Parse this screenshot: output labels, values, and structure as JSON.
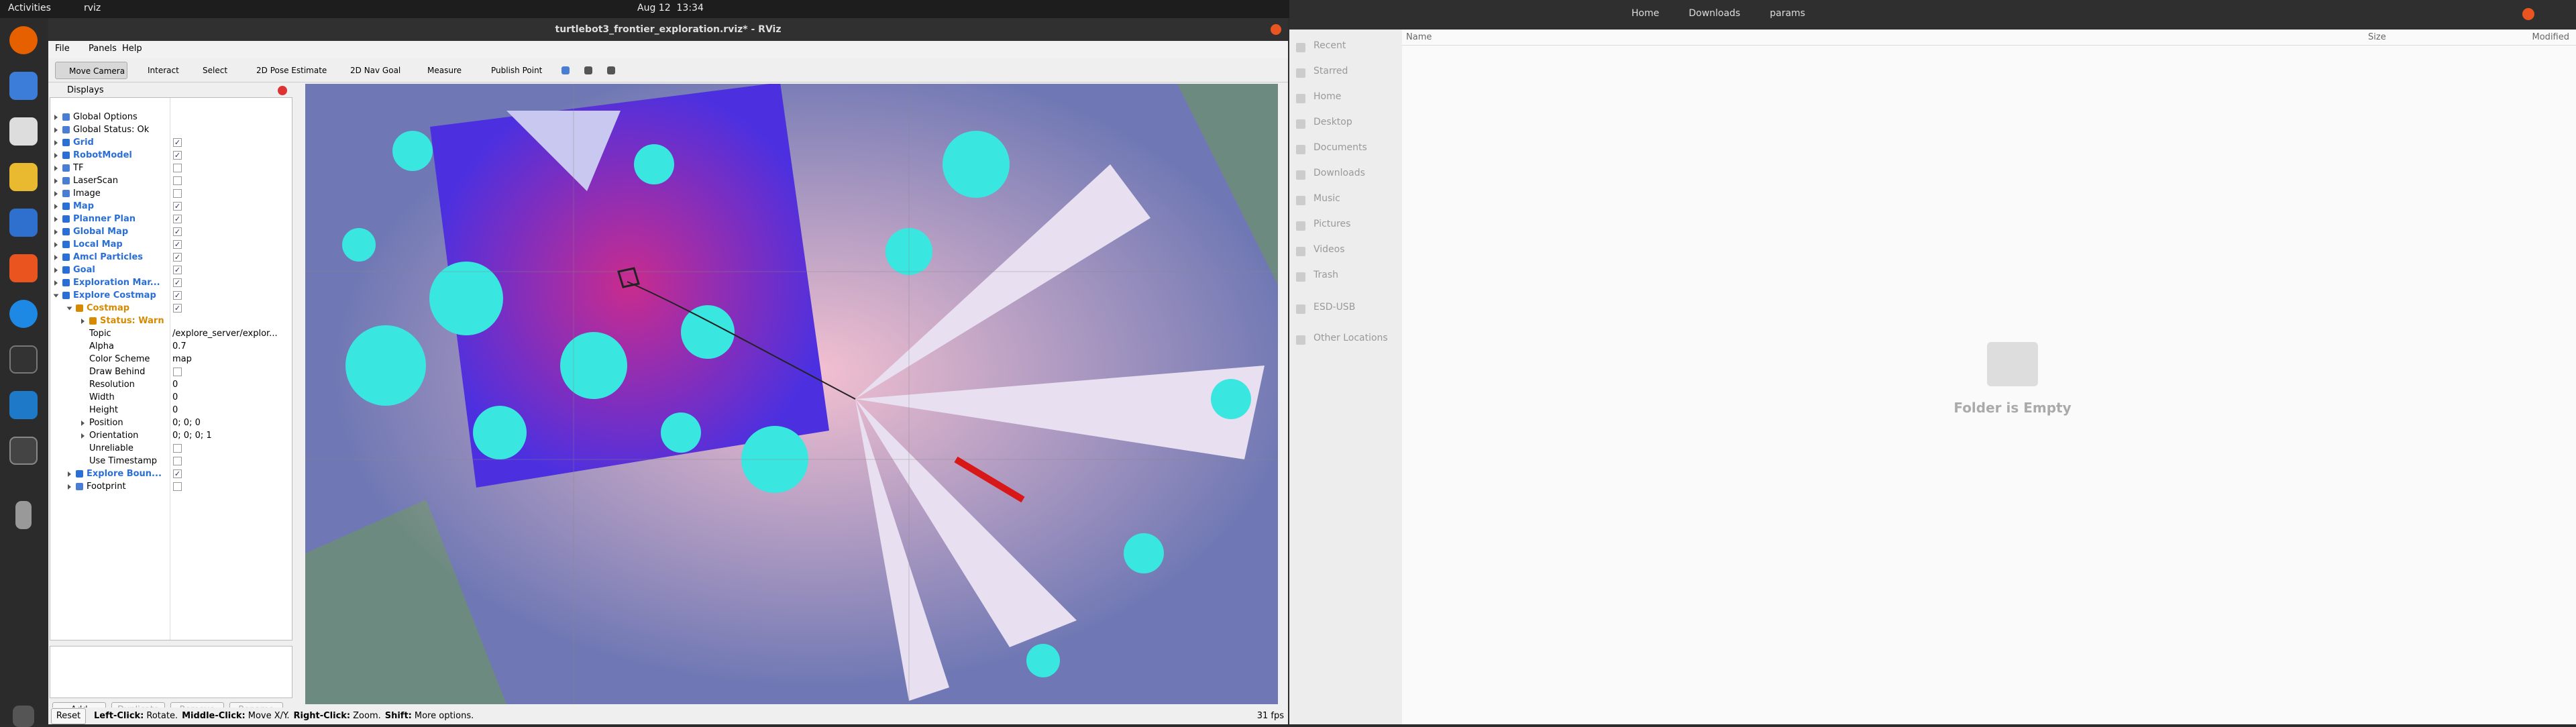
{
  "topbar": {
    "activities": "Activities",
    "app": "rviz",
    "clock": "Aug 12  13:34"
  },
  "rviz": {
    "title": "turtlebot3_frontier_exploration.rviz* - RViz",
    "menu": [
      "File",
      "Panels",
      "Help"
    ],
    "toolbar": [
      "Move Camera",
      "Interact",
      "Select",
      "2D Pose Estimate",
      "2D Nav Goal",
      "Measure",
      "Publish Point"
    ],
    "displays": {
      "header": "Displays",
      "rows": [
        {
          "label": "Global Options",
          "level": 0,
          "expand": "closed"
        },
        {
          "label": "Global Status: Ok",
          "level": 0,
          "expand": "closed"
        },
        {
          "label": "Grid",
          "level": 0,
          "expand": "closed",
          "check": true,
          "color": "blue"
        },
        {
          "label": "RobotModel",
          "level": 0,
          "expand": "closed",
          "check": true,
          "color": "blue"
        },
        {
          "label": "TF",
          "level": 0,
          "expand": "closed",
          "check": false
        },
        {
          "label": "LaserScan",
          "level": 0,
          "expand": "closed",
          "check": false
        },
        {
          "label": "Image",
          "level": 0,
          "expand": "closed",
          "check": false
        },
        {
          "label": "Map",
          "level": 0,
          "expand": "closed",
          "check": true,
          "color": "blue"
        },
        {
          "label": "Planner Plan",
          "level": 0,
          "expand": "closed",
          "check": true,
          "color": "blue"
        },
        {
          "label": "Global Map",
          "level": 0,
          "expand": "closed",
          "check": true,
          "color": "blue"
        },
        {
          "label": "Local Map",
          "level": 0,
          "expand": "closed",
          "check": true,
          "color": "blue"
        },
        {
          "label": "Amcl Particles",
          "level": 0,
          "expand": "closed",
          "check": true,
          "color": "blue"
        },
        {
          "label": "Goal",
          "level": 0,
          "expand": "closed",
          "check": true,
          "color": "blue"
        },
        {
          "label": "Exploration Mar...",
          "level": 0,
          "expand": "closed",
          "check": true,
          "color": "blue"
        },
        {
          "label": "Explore Costmap",
          "level": 0,
          "expand": "open",
          "check": true,
          "color": "blue"
        },
        {
          "label": "Costmap",
          "level": 1,
          "expand": "open",
          "check": true,
          "color": "orange"
        },
        {
          "label": "Status: Warn",
          "level": 2,
          "expand": "closed",
          "color": "orange"
        },
        {
          "label": "Topic",
          "level": 2,
          "value": "/explore_server/explor..."
        },
        {
          "label": "Alpha",
          "level": 2,
          "value": "0.7"
        },
        {
          "label": "Color Scheme",
          "level": 2,
          "value": "map"
        },
        {
          "label": "Draw Behind",
          "level": 2,
          "check": false
        },
        {
          "label": "Resolution",
          "level": 2,
          "value": "0"
        },
        {
          "label": "Width",
          "level": 2,
          "value": "0"
        },
        {
          "label": "Height",
          "level": 2,
          "value": "0"
        },
        {
          "label": "Position",
          "level": 2,
          "expand": "closed",
          "value": "0; 0; 0"
        },
        {
          "label": "Orientation",
          "level": 2,
          "expand": "closed",
          "value": "0; 0; 0; 1"
        },
        {
          "label": "Unreliable",
          "level": 2,
          "check": false
        },
        {
          "label": "Use Timestamp",
          "level": 2,
          "check": false
        },
        {
          "label": "Explore Boun...",
          "level": 1,
          "expand": "closed",
          "check": true,
          "color": "blue"
        },
        {
          "label": "Footprint",
          "level": 1,
          "expand": "closed",
          "check": false
        }
      ],
      "buttons": [
        {
          "label": "Add",
          "enabled": true
        },
        {
          "label": "Duplicate",
          "enabled": false
        },
        {
          "label": "Remove",
          "enabled": false
        },
        {
          "label": "Rename",
          "enabled": false
        }
      ]
    },
    "status": {
      "reset": "Reset",
      "hint": [
        {
          "key": "Left-Click:",
          "text": "Rotate."
        },
        {
          "key": "Middle-Click:",
          "text": "Move X/Y."
        },
        {
          "key": "Right-Click:",
          "text": "Zoom."
        },
        {
          "key": "Shift:",
          "text": "More options."
        }
      ],
      "fps": "31 fps"
    }
  },
  "files": {
    "path": [
      "Home",
      "Downloads",
      "params"
    ],
    "sidebar": [
      "Recent",
      "Starred",
      "Home",
      "Desktop",
      "Documents",
      "Downloads",
      "Music",
      "Pictures",
      "Videos",
      "Trash",
      "ESD-USB",
      "Other Locations"
    ],
    "columns": [
      "Name",
      "Size",
      "Modified"
    ],
    "empty": "Folder is Empty"
  }
}
